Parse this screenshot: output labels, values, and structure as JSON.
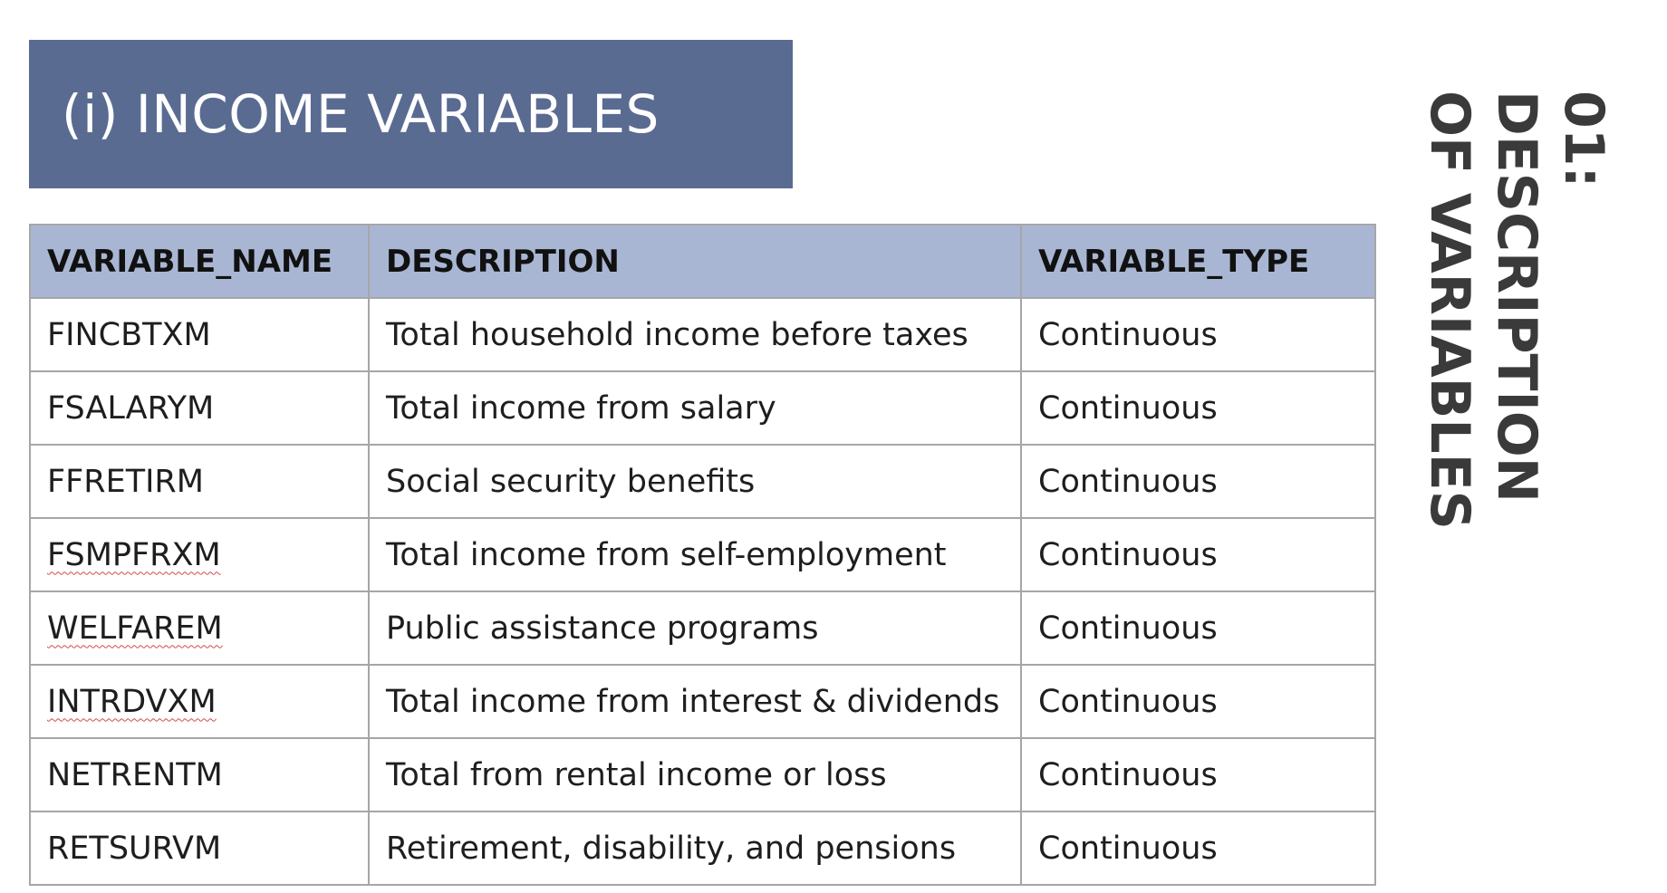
{
  "title": "(i) INCOME VARIABLES",
  "side_heading": "01:\nDESCRIPTION\nOF VARIABLES",
  "table": {
    "headers": [
      "VARIABLE_NAME",
      "DESCRIPTION",
      "VARIABLE_TYPE"
    ],
    "rows": [
      {
        "name": "FINCBTXM",
        "description": "Total household income before taxes",
        "type": "Continuous",
        "spellcheck_flag": false
      },
      {
        "name": "FSALARYM",
        "description": "Total income from salary",
        "type": "Continuous",
        "spellcheck_flag": false
      },
      {
        "name": "FFRETIRM",
        "description": "Social security benefits",
        "type": "Continuous",
        "spellcheck_flag": false
      },
      {
        "name": "FSMPFRXM",
        "description": "Total income from self-employment",
        "type": "Continuous",
        "spellcheck_flag": true
      },
      {
        "name": "WELFAREM",
        "description": "Public assistance programs",
        "type": "Continuous",
        "spellcheck_flag": true
      },
      {
        "name": "INTRDVXM",
        "description": "Total income from interest & dividends",
        "type": "Continuous",
        "spellcheck_flag": true
      },
      {
        "name": "NETRENTM",
        "description": "Total from rental income or loss",
        "type": "Continuous",
        "spellcheck_flag": false
      },
      {
        "name": "RETSURVM",
        "description": "Retirement, disability, and pensions",
        "type": "Continuous",
        "spellcheck_flag": false
      }
    ]
  },
  "colors": {
    "banner_bg": "#5a6b92",
    "header_bg": "#a9b6d3",
    "grid_border": "#a6a6a6",
    "side_heading_text": "#3a3a3a",
    "spellcheck_underline": "#d24a4a"
  }
}
